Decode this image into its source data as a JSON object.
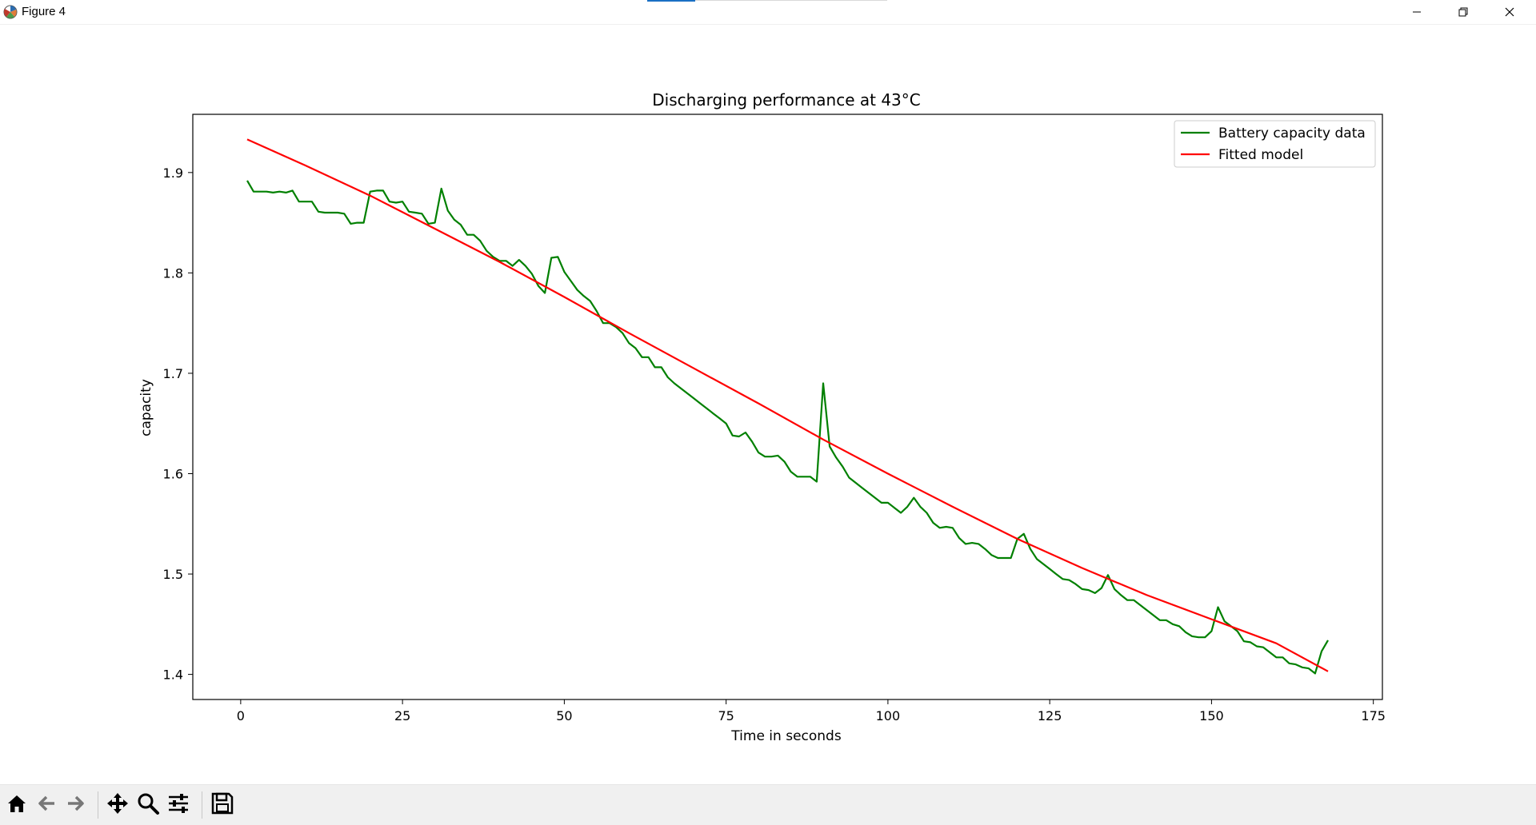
{
  "window": {
    "title": "Figure 4",
    "app_icon": "matplotlib-icon",
    "controls": [
      "minimize-icon",
      "maximize-icon",
      "close-icon"
    ]
  },
  "toolbar": {
    "tools": [
      {
        "name": "home-button",
        "icon": "home-icon",
        "tooltip": "Reset original view"
      },
      {
        "name": "back-button",
        "icon": "arrow-left-icon",
        "tooltip": "Back to previous view"
      },
      {
        "name": "forward-button",
        "icon": "arrow-right-icon",
        "tooltip": "Forward to next view"
      },
      {
        "name": "pan-button",
        "icon": "move-icon",
        "tooltip": "Pan axes"
      },
      {
        "name": "zoom-button",
        "icon": "magnifier-icon",
        "tooltip": "Zoom to rectangle"
      },
      {
        "name": "configure-button",
        "icon": "sliders-icon",
        "tooltip": "Configure subplots"
      },
      {
        "name": "save-button",
        "icon": "floppy-icon",
        "tooltip": "Save the figure"
      }
    ]
  },
  "chart_data": {
    "type": "line",
    "title": "Discharging performance at 43°C",
    "xlabel": "Time in seconds",
    "ylabel": "capacity",
    "xlim": [
      -7.4,
      176.4
    ],
    "ylim": [
      1.375,
      1.958
    ],
    "xticks": [
      0,
      25,
      50,
      75,
      100,
      125,
      150,
      175
    ],
    "yticks": [
      1.4,
      1.5,
      1.6,
      1.7,
      1.8,
      1.9
    ],
    "xtick_labels": [
      "0",
      "25",
      "50",
      "75",
      "100",
      "125",
      "150",
      "175"
    ],
    "ytick_labels": [
      "1.4",
      "1.5",
      "1.6",
      "1.7",
      "1.8",
      "1.9"
    ],
    "grid": false,
    "legend": "top-right",
    "series": [
      {
        "name": "Battery capacity data",
        "color": "#008000",
        "x": [
          1,
          2,
          3,
          4,
          5,
          6,
          7,
          8,
          9,
          10,
          11,
          12,
          13,
          14,
          15,
          16,
          17,
          18,
          19,
          20,
          21,
          22,
          23,
          24,
          25,
          26,
          27,
          28,
          29,
          30,
          31,
          32,
          33,
          34,
          35,
          36,
          37,
          38,
          39,
          40,
          41,
          42,
          43,
          44,
          45,
          46,
          47,
          48,
          49,
          50,
          51,
          52,
          53,
          54,
          55,
          56,
          57,
          58,
          59,
          60,
          61,
          62,
          63,
          64,
          65,
          66,
          67,
          68,
          69,
          70,
          71,
          72,
          73,
          74,
          75,
          76,
          77,
          78,
          79,
          80,
          81,
          82,
          83,
          84,
          85,
          86,
          87,
          88,
          89,
          90,
          91,
          92,
          93,
          94,
          95,
          96,
          97,
          98,
          99,
          100,
          101,
          102,
          103,
          104,
          105,
          106,
          107,
          108,
          109,
          110,
          111,
          112,
          113,
          114,
          115,
          116,
          117,
          118,
          119,
          120,
          121,
          122,
          123,
          124,
          125,
          126,
          127,
          128,
          129,
          130,
          131,
          132,
          133,
          134,
          135,
          136,
          137,
          138,
          139,
          140,
          141,
          142,
          143,
          144,
          145,
          146,
          147,
          148,
          149,
          150,
          151,
          152,
          153,
          154,
          155,
          156,
          157,
          158,
          159,
          160,
          161,
          162,
          163,
          164,
          165,
          166,
          167,
          168
        ],
        "values": [
          1.892,
          1.881,
          1.881,
          1.881,
          1.88,
          1.881,
          1.88,
          1.882,
          1.871,
          1.871,
          1.871,
          1.861,
          1.86,
          1.86,
          1.86,
          1.859,
          1.849,
          1.85,
          1.85,
          1.881,
          1.882,
          1.882,
          1.871,
          1.87,
          1.871,
          1.861,
          1.86,
          1.859,
          1.849,
          1.85,
          1.884,
          1.862,
          1.853,
          1.848,
          1.838,
          1.838,
          1.832,
          1.822,
          1.816,
          1.812,
          1.812,
          1.807,
          1.813,
          1.807,
          1.799,
          1.787,
          1.78,
          1.815,
          1.816,
          1.801,
          1.792,
          1.783,
          1.777,
          1.772,
          1.762,
          1.75,
          1.75,
          1.746,
          1.74,
          1.73,
          1.725,
          1.716,
          1.716,
          1.706,
          1.706,
          1.696,
          1.69,
          1.685,
          1.68,
          1.675,
          1.67,
          1.665,
          1.66,
          1.655,
          1.65,
          1.638,
          1.637,
          1.641,
          1.632,
          1.621,
          1.617,
          1.617,
          1.618,
          1.612,
          1.602,
          1.597,
          1.597,
          1.597,
          1.592,
          1.69,
          1.627,
          1.616,
          1.607,
          1.596,
          1.591,
          1.586,
          1.581,
          1.576,
          1.571,
          1.571,
          1.566,
          1.561,
          1.567,
          1.576,
          1.567,
          1.561,
          1.551,
          1.546,
          1.547,
          1.546,
          1.536,
          1.53,
          1.531,
          1.53,
          1.525,
          1.519,
          1.516,
          1.516,
          1.516,
          1.535,
          1.54,
          1.525,
          1.515,
          1.51,
          1.505,
          1.5,
          1.495,
          1.494,
          1.49,
          1.485,
          1.484,
          1.481,
          1.486,
          1.499,
          1.485,
          1.479,
          1.474,
          1.474,
          1.469,
          1.464,
          1.459,
          1.454,
          1.454,
          1.45,
          1.448,
          1.442,
          1.438,
          1.437,
          1.437,
          1.443,
          1.467,
          1.453,
          1.448,
          1.443,
          1.433,
          1.432,
          1.428,
          1.427,
          1.422,
          1.417,
          1.417,
          1.411,
          1.41,
          1.407,
          1.406,
          1.401,
          1.423,
          1.434
        ]
      },
      {
        "name": "Fitted model",
        "color": "#ff0000",
        "x": [
          1,
          10,
          20,
          30,
          40,
          50,
          60,
          70,
          80,
          90,
          100,
          110,
          120,
          130,
          140,
          150,
          160,
          168
        ],
        "values": [
          1.933,
          1.907,
          1.877,
          1.844,
          1.811,
          1.776,
          1.74,
          1.705,
          1.67,
          1.634,
          1.6,
          1.567,
          1.535,
          1.506,
          1.479,
          1.455,
          1.431,
          1.403
        ]
      }
    ]
  }
}
